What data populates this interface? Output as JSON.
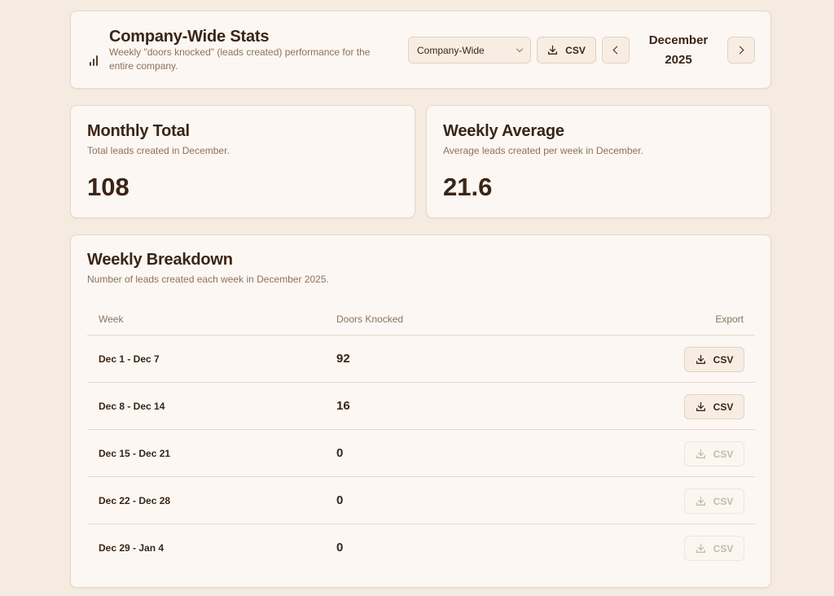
{
  "header": {
    "title": "Company-Wide Stats",
    "description": "Weekly \"doors knocked\" (leads created) performance for the entire company.",
    "icon": "bar-chart-icon",
    "scope_select": {
      "value": "Company-Wide"
    },
    "csv_label": "CSV",
    "month_line1": "December",
    "month_line2": "2025"
  },
  "stats": {
    "monthly_total": {
      "title": "Monthly Total",
      "description": "Total leads created in December.",
      "value": "108"
    },
    "weekly_average": {
      "title": "Weekly Average",
      "description": "Average leads created per week in December.",
      "value": "21.6"
    }
  },
  "weekly": {
    "title": "Weekly Breakdown",
    "description": "Number of leads created each week in December 2025.",
    "columns": {
      "week": "Week",
      "doors": "Doors Knocked",
      "export": "Export"
    },
    "rows": [
      {
        "week": "Dec 1 - Dec 7",
        "doors": "92",
        "export_label": "CSV",
        "export_enabled": true
      },
      {
        "week": "Dec 8 - Dec 14",
        "doors": "16",
        "export_label": "CSV",
        "export_enabled": true
      },
      {
        "week": "Dec 15 - Dec 21",
        "doors": "0",
        "export_label": "CSV",
        "export_enabled": false
      },
      {
        "week": "Dec 22 - Dec 28",
        "doors": "0",
        "export_label": "CSV",
        "export_enabled": false
      },
      {
        "week": "Dec 29 - Jan 4",
        "doors": "0",
        "export_label": "CSV",
        "export_enabled": false
      }
    ]
  },
  "colors": {
    "background": "#f5ebe1",
    "card": "#fcf7f2",
    "text": "#3a2517",
    "muted": "#8c7260",
    "border": "#e6d8cb"
  }
}
